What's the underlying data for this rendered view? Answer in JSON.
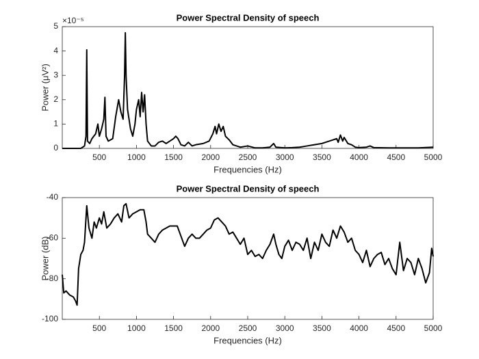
{
  "chart_data": [
    {
      "type": "line",
      "title": "Power Spectral Density of speech",
      "xlabel": "Frequencies (Hz)",
      "ylabel": "Power (μV²)",
      "exponent_label": "×10⁻⁵",
      "xlim": [
        0,
        5000
      ],
      "xticks": [
        500,
        1000,
        1500,
        2000,
        2500,
        3000,
        3500,
        4000,
        4500,
        5000
      ],
      "ylim": [
        0,
        5
      ],
      "yticks": [
        0,
        1,
        2,
        3,
        4,
        5
      ],
      "color": "#000000",
      "x": [
        0,
        250,
        300,
        320,
        330,
        340,
        370,
        400,
        450,
        480,
        500,
        530,
        560,
        575,
        590,
        620,
        680,
        720,
        760,
        790,
        820,
        840,
        850,
        860,
        880,
        920,
        950,
        980,
        1000,
        1030,
        1050,
        1070,
        1090,
        1110,
        1130,
        1150,
        1200,
        1250,
        1300,
        1350,
        1400,
        1450,
        1500,
        1530,
        1560,
        1600,
        1650,
        1700,
        1750,
        1800,
        1900,
        1980,
        2030,
        2060,
        2080,
        2110,
        2140,
        2170,
        2200,
        2250,
        2300,
        2350,
        2400,
        2500,
        2600,
        2700,
        2800,
        2850,
        2880,
        3000,
        3100,
        3200,
        3300,
        3400,
        3500,
        3550,
        3600,
        3650,
        3700,
        3720,
        3750,
        3780,
        3800,
        3850,
        3900,
        3950,
        4000,
        4100,
        4150,
        4200,
        4400,
        4600,
        4800,
        5000
      ],
      "values": [
        0,
        0,
        0.1,
        0.5,
        4.05,
        0.3,
        0.2,
        0.4,
        0.6,
        1.0,
        0.5,
        0.8,
        1.2,
        2.1,
        0.5,
        0.3,
        0.4,
        1.3,
        2.0,
        1.5,
        1.2,
        3.0,
        4.75,
        3.0,
        1.6,
        0.8,
        0.5,
        1.0,
        1.6,
        2.0,
        1.3,
        2.3,
        1.5,
        2.2,
        1.0,
        0.3,
        0.1,
        0.1,
        0.25,
        0.3,
        0.2,
        0.3,
        0.4,
        0.5,
        0.4,
        0.15,
        0.1,
        0.25,
        0.1,
        0.15,
        0.2,
        0.3,
        0.6,
        0.9,
        0.6,
        1.0,
        0.7,
        0.9,
        0.5,
        0.35,
        0.15,
        0.1,
        0.05,
        0.1,
        0.02,
        0.02,
        0.05,
        0.2,
        0.05,
        0.02,
        0.03,
        0.05,
        0.1,
        0.15,
        0.2,
        0.25,
        0.3,
        0.35,
        0.4,
        0.25,
        0.55,
        0.3,
        0.45,
        0.2,
        0.15,
        0.05,
        0.03,
        0.05,
        0.1,
        0.03,
        0.02,
        0.02,
        0.02,
        0.05
      ]
    },
    {
      "type": "line",
      "title": "Power Spectral Density of speech",
      "xlabel": "Frequencies (Hz)",
      "ylabel": "Power (dB)",
      "xlim": [
        0,
        5000
      ],
      "xticks": [
        500,
        1000,
        1500,
        2000,
        2500,
        3000,
        3500,
        4000,
        4500,
        5000
      ],
      "ylim": [
        -100,
        -40
      ],
      "yticks": [
        -100,
        -80,
        -60,
        -40
      ],
      "color": "#000000",
      "x": [
        0,
        20,
        50,
        100,
        150,
        180,
        200,
        220,
        250,
        280,
        300,
        330,
        360,
        400,
        430,
        460,
        500,
        530,
        560,
        600,
        650,
        700,
        750,
        800,
        830,
        860,
        900,
        950,
        1000,
        1050,
        1100,
        1130,
        1150,
        1200,
        1250,
        1300,
        1350,
        1400,
        1450,
        1500,
        1550,
        1580,
        1620,
        1650,
        1700,
        1750,
        1800,
        1850,
        1900,
        1950,
        2000,
        2050,
        2100,
        2150,
        2200,
        2250,
        2300,
        2350,
        2400,
        2450,
        2500,
        2550,
        2600,
        2650,
        2700,
        2750,
        2800,
        2850,
        2880,
        2920,
        2960,
        3000,
        3050,
        3100,
        3150,
        3200,
        3250,
        3300,
        3350,
        3400,
        3450,
        3500,
        3550,
        3600,
        3650,
        3700,
        3750,
        3800,
        3850,
        3900,
        3950,
        4000,
        4050,
        4100,
        4150,
        4200,
        4250,
        4300,
        4350,
        4400,
        4450,
        4500,
        4550,
        4600,
        4650,
        4700,
        4750,
        4800,
        4850,
        4900,
        4950,
        4980,
        5000
      ],
      "values": [
        -78,
        -87,
        -86,
        -88,
        -89,
        -91,
        -93,
        -75,
        -68,
        -66,
        -62,
        -44,
        -55,
        -60,
        -52,
        -55,
        -50,
        -53,
        -47,
        -55,
        -53,
        -50,
        -48,
        -52,
        -44,
        -43,
        -50,
        -48,
        -47,
        -46,
        -46,
        -52,
        -58,
        -60,
        -62,
        -58,
        -56,
        -55,
        -54,
        -54,
        -54,
        -57,
        -61,
        -64,
        -60,
        -58,
        -60,
        -60,
        -58,
        -56,
        -55,
        -51,
        -50,
        -52,
        -54,
        -58,
        -57,
        -60,
        -63,
        -60,
        -68,
        -66,
        -69,
        -68,
        -70,
        -66,
        -63,
        -58,
        -63,
        -68,
        -70,
        -64,
        -61,
        -66,
        -62,
        -63,
        -66,
        -60,
        -70,
        -62,
        -66,
        -58,
        -62,
        -64,
        -56,
        -60,
        -54,
        -57,
        -62,
        -60,
        -66,
        -68,
        -72,
        -66,
        -74,
        -70,
        -68,
        -67,
        -73,
        -70,
        -75,
        -78,
        -62,
        -76,
        -70,
        -72,
        -78,
        -70,
        -75,
        -82,
        -77,
        -65,
        -69
      ]
    }
  ]
}
